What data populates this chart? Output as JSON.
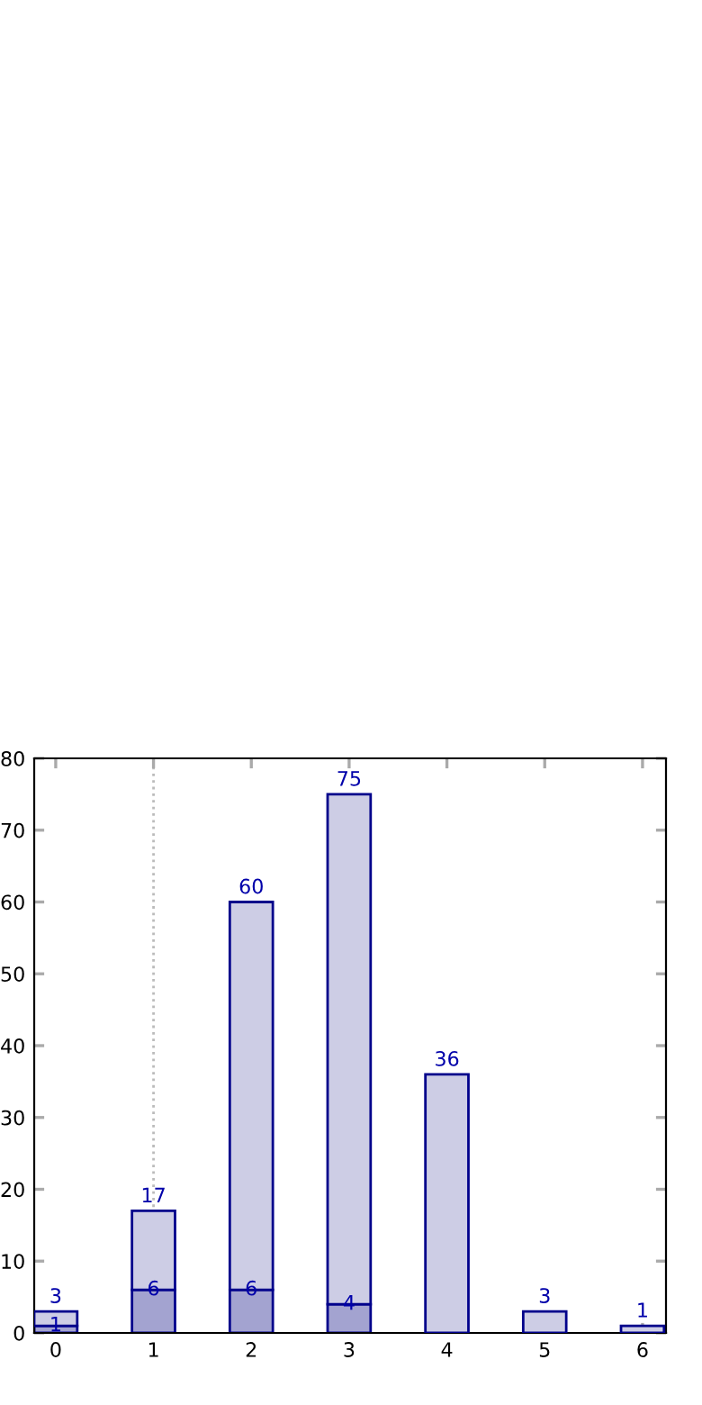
{
  "chart_data": {
    "type": "bar",
    "stacked": true,
    "x": [
      0,
      1,
      2,
      3,
      4,
      5,
      6
    ],
    "series": [
      {
        "color": "#a3a3d0",
        "values": [
          1,
          6,
          6,
          4,
          null,
          null,
          null
        ],
        "value_labels": [
          "1",
          "6",
          "6",
          "4",
          null,
          null,
          null
        ]
      },
      {
        "color": "#cdcde5",
        "values": [
          2,
          11,
          54,
          71,
          36,
          3,
          1
        ]
      }
    ],
    "totals": [
      "3",
      "17",
      "60",
      "75",
      "36",
      "3",
      "1"
    ],
    "xlim": [
      -0.22,
      6.24
    ],
    "xticks": [
      0,
      1,
      2,
      3,
      4,
      5,
      6
    ],
    "ylim": [
      0,
      80
    ],
    "yticks": [
      0,
      10,
      20,
      30,
      40,
      50,
      60,
      70,
      80
    ],
    "ref_lines": [
      {
        "axis": "x",
        "value": 1,
        "label": null,
        "color": "#bbbbbb",
        "line_style": "dotted"
      }
    ],
    "grid": false,
    "legend": false
  }
}
